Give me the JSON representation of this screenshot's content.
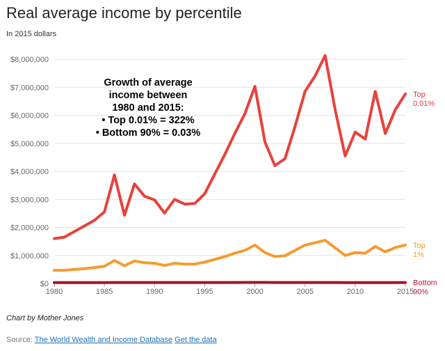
{
  "title": "Real average income by percentile",
  "subtitle": "In 2015 dollars",
  "annotation": {
    "lines": [
      "Growth of average",
      "income between",
      "1980 and 2015:",
      "• Top 0.01% = 322%",
      "• Bottom 90% = 0.03%"
    ]
  },
  "credit": "Chart by Mother Jones",
  "source": {
    "prefix": "Source: ",
    "link_text": "The World Wealth and Income Database",
    "get_data_text": "Get the data"
  },
  "chart_data": {
    "type": "line",
    "ylim": [
      0,
      8000000
    ],
    "xlim": [
      1980,
      2015
    ],
    "y_ticks": [
      0,
      1000000,
      2000000,
      3000000,
      4000000,
      5000000,
      6000000,
      7000000,
      8000000
    ],
    "y_tick_labels": [
      "$0",
      "$1,000,000",
      "$2,000,000",
      "$3,000,000",
      "$4,000,000",
      "$5,000,000",
      "$6,000,000",
      "$7,000,000",
      "$8,000,000"
    ],
    "x_ticks": [
      1980,
      1985,
      1990,
      1995,
      2000,
      2005,
      2010,
      2015
    ],
    "x_tick_labels": [
      "1980",
      "1985",
      "1990",
      "1995",
      "2000",
      "2005",
      "2010",
      "2015"
    ],
    "grid": true,
    "x": [
      1980,
      1981,
      1982,
      1983,
      1984,
      1985,
      1986,
      1987,
      1988,
      1989,
      1990,
      1991,
      1992,
      1993,
      1994,
      1995,
      1996,
      1997,
      1998,
      1999,
      2000,
      2001,
      2002,
      2003,
      2004,
      2005,
      2006,
      2007,
      2008,
      2009,
      2010,
      2011,
      2012,
      2013,
      2014,
      2015
    ],
    "series": [
      {
        "name": "Top 0.01%",
        "label_lines": [
          "Top",
          "0.01%"
        ],
        "color": "#e8413a",
        "label_color": "#d9363e",
        "values": [
          1600000,
          1650000,
          1850000,
          2050000,
          2250000,
          2550000,
          3870000,
          2430000,
          3550000,
          3110000,
          2980000,
          2510000,
          3000000,
          2830000,
          2850000,
          3200000,
          3900000,
          4600000,
          5350000,
          6050000,
          7030000,
          5050000,
          4200000,
          4450000,
          5600000,
          6850000,
          7400000,
          8130000,
          6200000,
          4550000,
          5400000,
          5150000,
          6850000,
          5350000,
          6200000,
          6760000
        ]
      },
      {
        "name": "Top 1%",
        "label_lines": [
          "Top",
          "1%"
        ],
        "color": "#f59b30",
        "label_color": "#f59b30",
        "values": [
          470000,
          470000,
          500000,
          530000,
          570000,
          610000,
          820000,
          630000,
          800000,
          740000,
          720000,
          640000,
          720000,
          690000,
          690000,
          760000,
          860000,
          960000,
          1080000,
          1180000,
          1370000,
          1100000,
          960000,
          990000,
          1180000,
          1370000,
          1450000,
          1540000,
          1270000,
          1000000,
          1100000,
          1080000,
          1320000,
          1130000,
          1280000,
          1370000
        ]
      },
      {
        "name": "Bottom 90%",
        "label_lines": [
          "Bottom",
          "90%"
        ],
        "color": "#a3122a",
        "label_color": "#b5163a",
        "values": [
          33000,
          33000,
          32000,
          32000,
          33000,
          33000,
          34000,
          34000,
          35000,
          35000,
          34000,
          34000,
          34000,
          34000,
          34000,
          34000,
          35000,
          35000,
          36000,
          37000,
          37000,
          37000,
          36000,
          35000,
          35000,
          35000,
          35000,
          35000,
          34000,
          33000,
          33000,
          33000,
          33000,
          33000,
          33000,
          34000
        ]
      }
    ]
  }
}
